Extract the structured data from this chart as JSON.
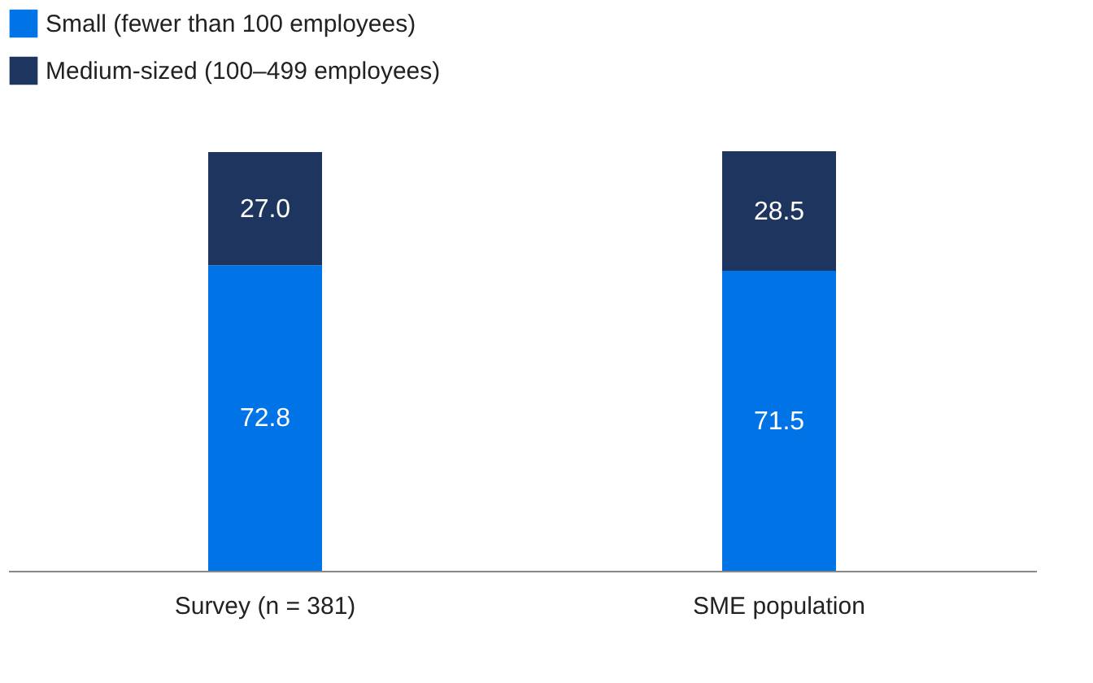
{
  "chart_data": {
    "type": "bar",
    "stacked": true,
    "legend": "top left",
    "grid": false,
    "categories": [
      "Survey (n = 381)",
      "SME population"
    ],
    "series": [
      {
        "name": "Small (fewer than 100 employees)",
        "color": "#0073e6",
        "values": [
          72.8,
          71.5
        ],
        "value_labels": [
          "72.8",
          "71.5"
        ]
      },
      {
        "name": "Medium-sized (100–499 employees)",
        "color": "#1e3560",
        "values": [
          27.0,
          28.5
        ],
        "value_labels": [
          "27.0",
          "28.5"
        ]
      }
    ]
  }
}
